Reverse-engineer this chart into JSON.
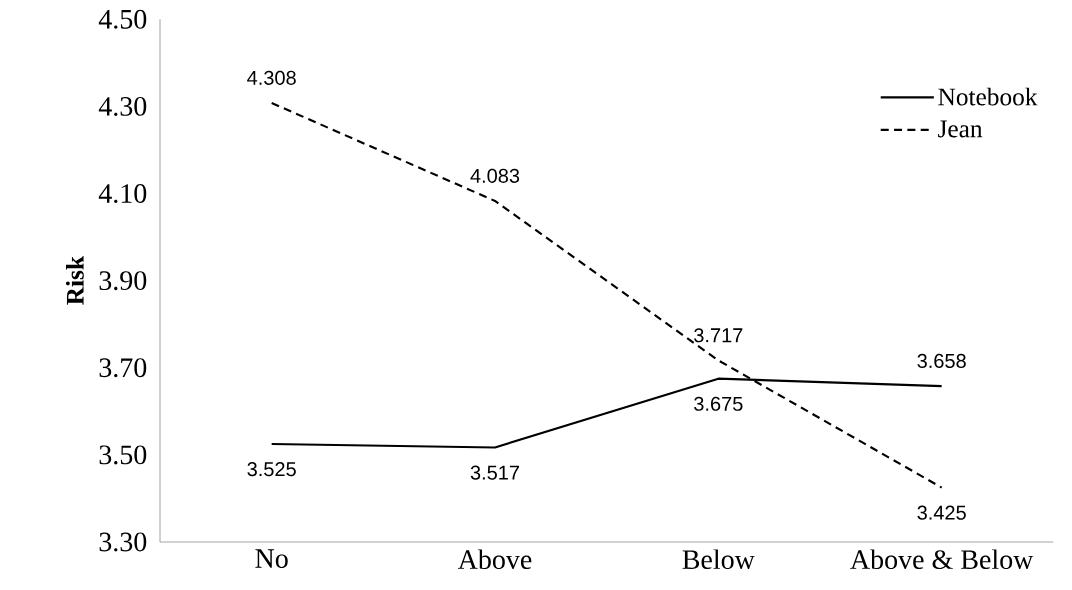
{
  "chart_data": {
    "type": "line",
    "ylabel": "Risk",
    "categories": [
      "No",
      "Above",
      "Below",
      "Above & Below"
    ],
    "series": [
      {
        "name": "Notebook",
        "color": "#000000",
        "line_style": "solid",
        "values": [
          3.525,
          3.517,
          3.675,
          3.658
        ],
        "value_labels": [
          "3.525",
          "3.517",
          "3.675",
          "3.658"
        ]
      },
      {
        "name": "Jean",
        "color": "#000000",
        "line_style": "dashed",
        "values": [
          4.308,
          4.083,
          3.717,
          3.425
        ],
        "value_labels": [
          "4.308",
          "4.083",
          "3.717",
          "3.425"
        ]
      }
    ],
    "ylim": [
      3.3,
      4.5
    ],
    "yticks": [
      {
        "value": 3.3,
        "label": "3.30"
      },
      {
        "value": 3.5,
        "label": "3.50"
      },
      {
        "value": 3.7,
        "label": "3.70"
      },
      {
        "value": 3.9,
        "label": "3.90"
      },
      {
        "value": 4.1,
        "label": "4.10"
      },
      {
        "value": 4.3,
        "label": "4.30"
      },
      {
        "value": 4.5,
        "label": "4.50"
      }
    ],
    "legend": "top right"
  }
}
